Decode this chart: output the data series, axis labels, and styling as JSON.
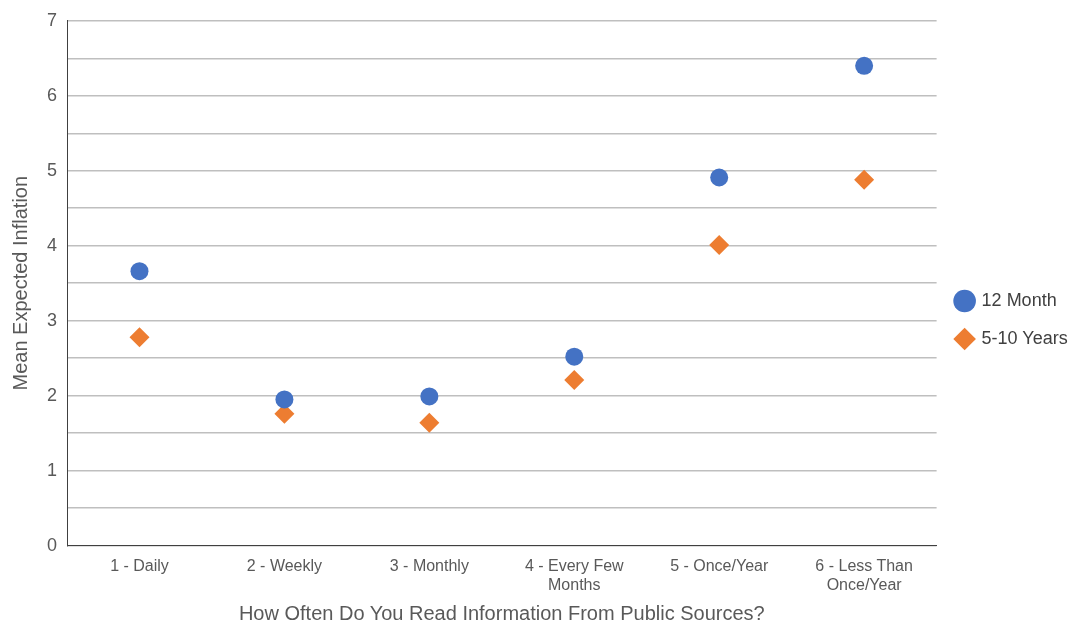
{
  "chart_data": {
    "type": "scatter",
    "xlabel": "How Often Do You Read Information From Public Sources?",
    "ylabel": "Mean Expected Inflation",
    "categories": [
      "1 - Daily",
      "2 - Weekly",
      "3 - Monthly",
      "4 - Every Few Months",
      "5 - Once/Year",
      "6 - Less Than Once/Year"
    ],
    "series": [
      {
        "name": "12 Month",
        "color": "#4472c4",
        "marker": "circle",
        "values": [
          3.66,
          1.95,
          1.99,
          2.52,
          4.91,
          6.4
        ]
      },
      {
        "name": "5-10 Years",
        "color": "#ed7d31",
        "marker": "diamond",
        "values": [
          2.78,
          1.76,
          1.64,
          2.21,
          4.01,
          4.88
        ]
      }
    ],
    "ylim": [
      0,
      7
    ],
    "yticks": [
      0,
      {
        "value": 0.5,
        "label": null
      },
      1,
      {
        "value": 1.5,
        "label": null
      },
      2,
      {
        "value": 2.5,
        "label": null
      },
      3,
      {
        "value": 3.5,
        "label": null
      },
      4,
      {
        "value": 4.5,
        "label": null
      },
      5,
      {
        "value": 5.5,
        "label": null
      },
      6,
      {
        "value": 6.5,
        "label": null
      },
      7
    ],
    "grid": "y",
    "legend": "right"
  }
}
